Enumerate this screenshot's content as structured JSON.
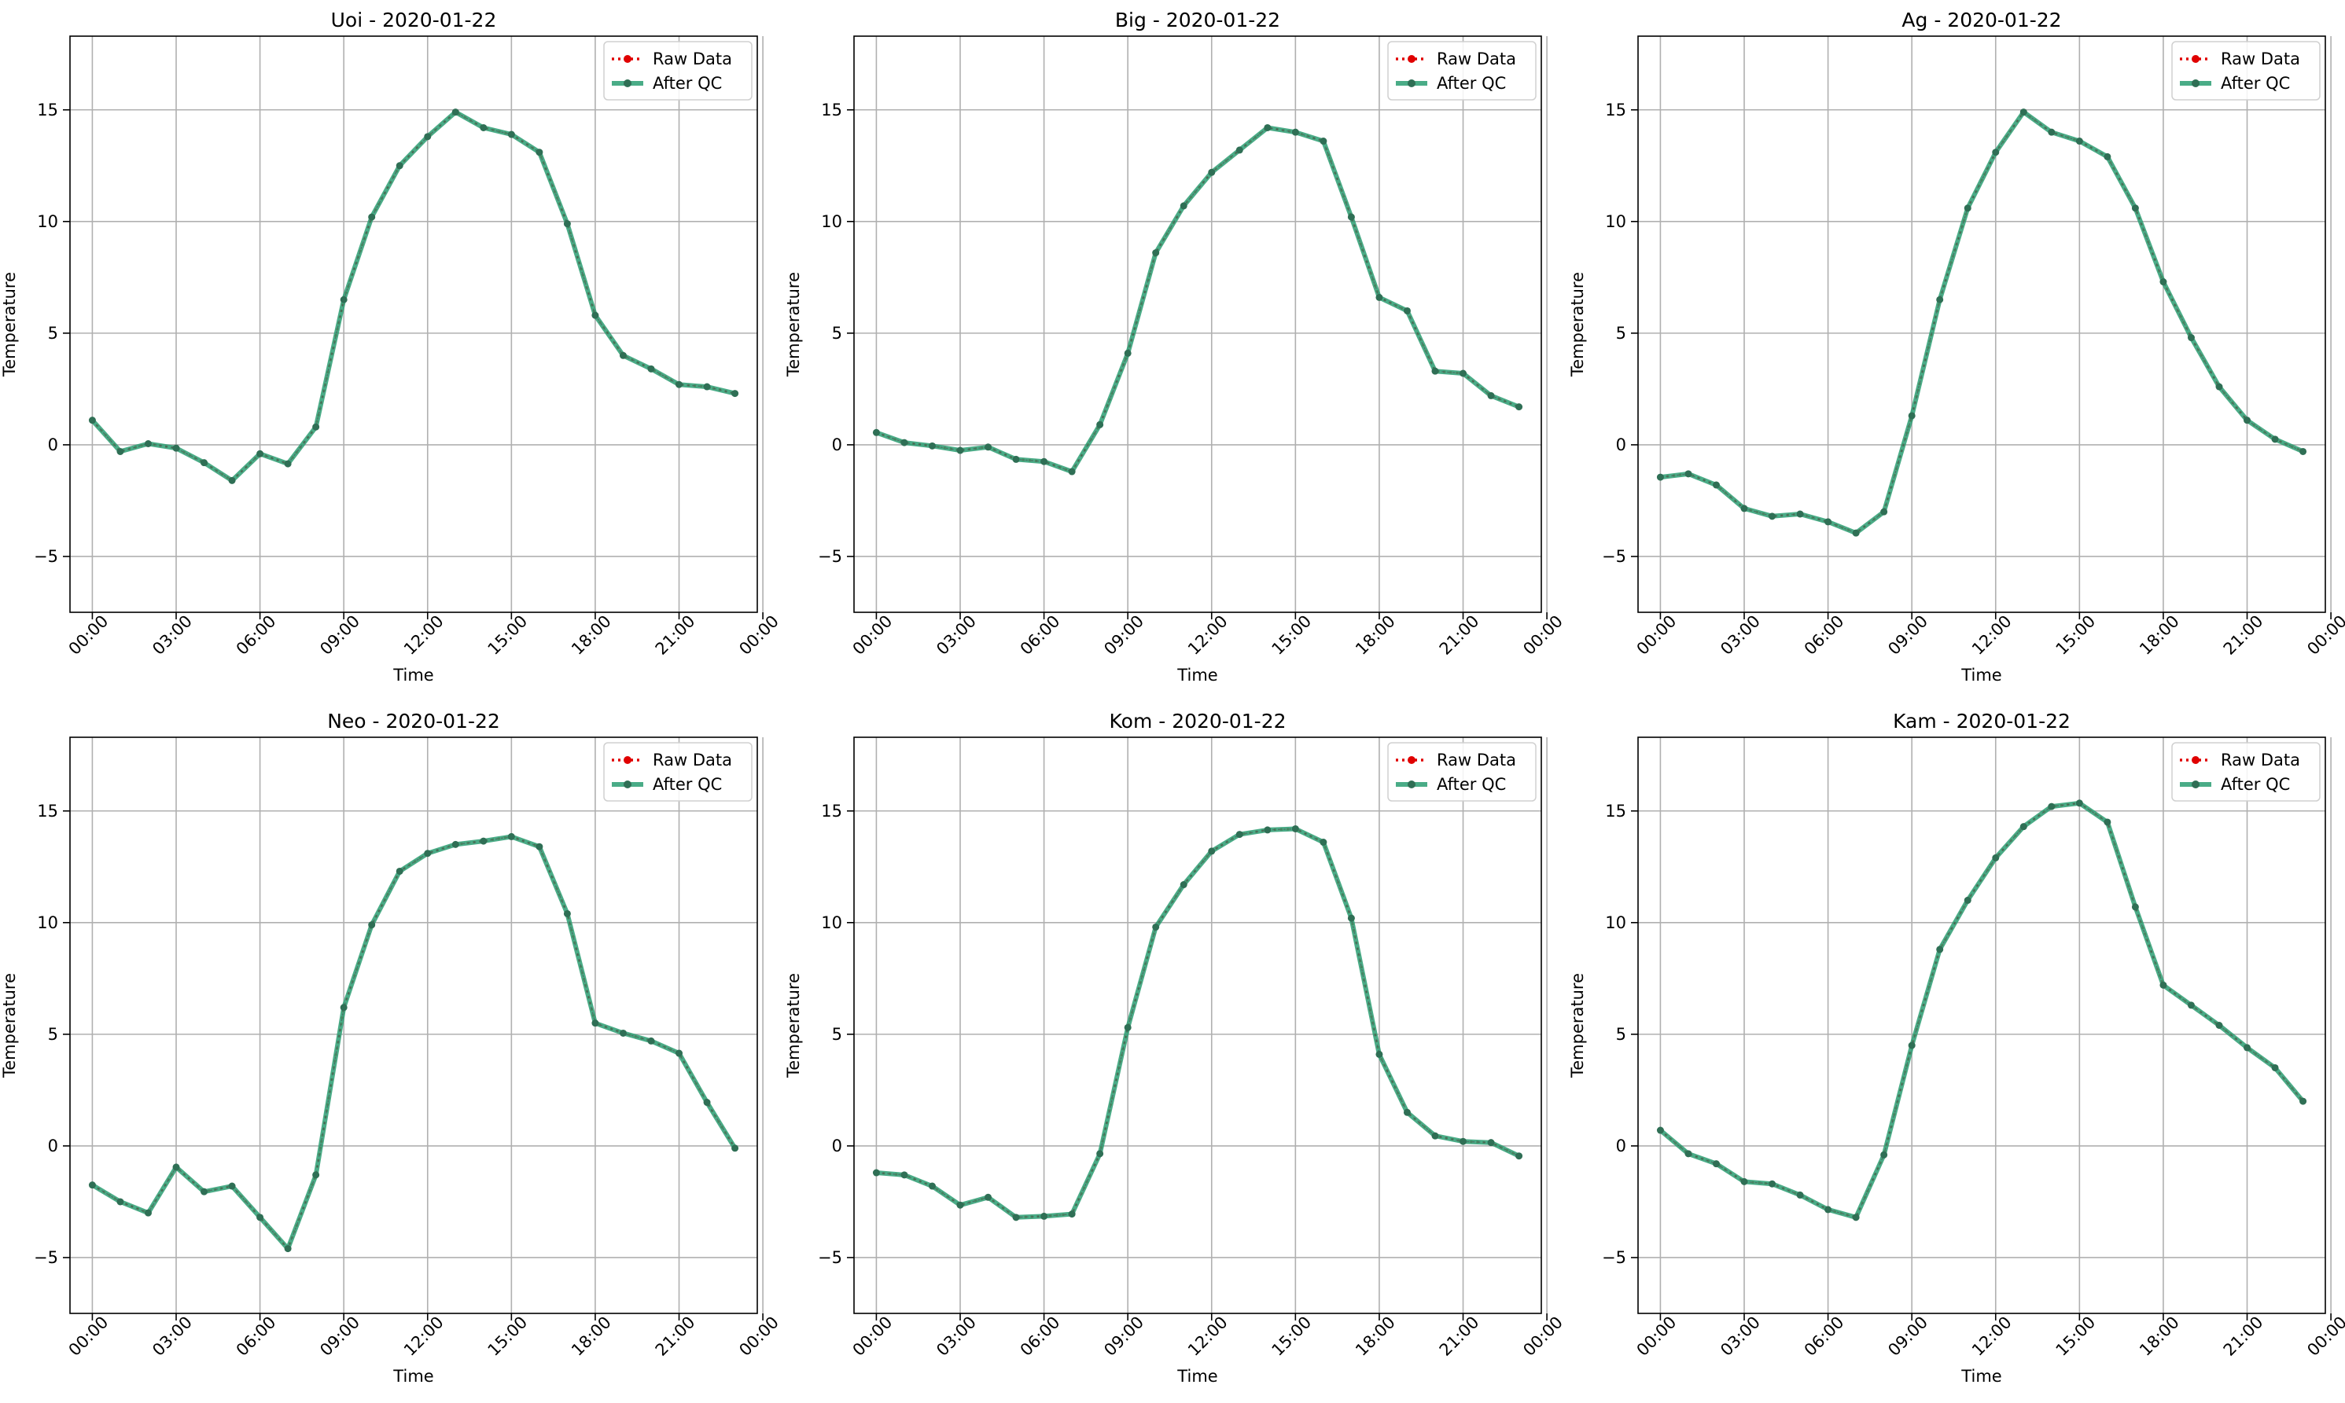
{
  "legend": {
    "raw_label": "Raw Data",
    "qc_label": "After QC"
  },
  "colors": {
    "raw": "#e00000",
    "qc": "#2a9d72",
    "marker": "#2f6f55",
    "grid": "#b0b0b0"
  },
  "chart_data": [
    {
      "type": "line",
      "title": "Uoi - 2020-01-22",
      "xlabel": "Time",
      "ylabel": "Temperature",
      "xlim": [
        -0.8,
        23.8
      ],
      "ylim": [
        -7.5,
        18.3
      ],
      "xticks": [
        0,
        3,
        6,
        9,
        12,
        15,
        18,
        21,
        24
      ],
      "xticklabels": [
        "00:00",
        "03:00",
        "06:00",
        "09:00",
        "12:00",
        "15:00",
        "18:00",
        "21:00",
        "00:00"
      ],
      "yticks": [
        -5,
        0,
        5,
        10,
        15
      ],
      "yticklabels": [
        "−5",
        "0",
        "5",
        "10",
        "15"
      ],
      "grid": true,
      "legend_position": "top-right",
      "x": [
        0,
        1,
        2,
        3,
        4,
        5,
        6,
        7,
        8,
        9,
        10,
        11,
        12,
        13,
        14,
        15,
        16,
        17,
        18,
        19,
        20,
        21,
        22,
        23
      ],
      "series": [
        {
          "name": "Raw Data",
          "values": [
            1.1,
            -0.3,
            0.05,
            -0.15,
            -0.8,
            -1.6,
            -0.4,
            -0.85,
            0.8,
            6.5,
            10.2,
            12.5,
            13.8,
            14.9,
            14.2,
            13.9,
            13.1,
            9.9,
            5.8,
            4.0,
            3.4,
            2.7,
            2.6,
            2.3
          ]
        },
        {
          "name": "After QC",
          "values": [
            1.1,
            -0.3,
            0.05,
            -0.15,
            -0.8,
            -1.6,
            -0.4,
            -0.85,
            0.8,
            6.5,
            10.2,
            12.5,
            13.8,
            14.9,
            14.2,
            13.9,
            13.1,
            9.9,
            5.8,
            4.0,
            3.4,
            2.7,
            2.6,
            2.3
          ]
        }
      ]
    },
    {
      "type": "line",
      "title": "Big - 2020-01-22",
      "xlabel": "Time",
      "ylabel": "Temperature",
      "xlim": [
        -0.8,
        23.8
      ],
      "ylim": [
        -7.5,
        18.3
      ],
      "xticks": [
        0,
        3,
        6,
        9,
        12,
        15,
        18,
        21,
        24
      ],
      "xticklabels": [
        "00:00",
        "03:00",
        "06:00",
        "09:00",
        "12:00",
        "15:00",
        "18:00",
        "21:00",
        "00:00"
      ],
      "yticks": [
        -5,
        0,
        5,
        10,
        15
      ],
      "yticklabels": [
        "−5",
        "0",
        "5",
        "10",
        "15"
      ],
      "grid": true,
      "legend_position": "top-right",
      "x": [
        0,
        1,
        2,
        3,
        4,
        5,
        6,
        7,
        8,
        9,
        10,
        11,
        12,
        13,
        14,
        15,
        16,
        17,
        18,
        19,
        20,
        21,
        22,
        23
      ],
      "series": [
        {
          "name": "Raw Data",
          "values": [
            0.55,
            0.1,
            -0.05,
            -0.25,
            -0.1,
            -0.65,
            -0.75,
            -1.2,
            0.9,
            4.1,
            8.6,
            10.7,
            12.2,
            13.2,
            14.2,
            14.0,
            13.6,
            10.2,
            6.6,
            6.0,
            3.3,
            3.2,
            2.2,
            1.7
          ]
        },
        {
          "name": "After QC",
          "values": [
            0.55,
            0.1,
            -0.05,
            -0.25,
            -0.1,
            -0.65,
            -0.75,
            -1.2,
            0.9,
            4.1,
            8.6,
            10.7,
            12.2,
            13.2,
            14.2,
            14.0,
            13.6,
            10.2,
            6.6,
            6.0,
            3.3,
            3.2,
            2.2,
            1.7
          ]
        }
      ]
    },
    {
      "type": "line",
      "title": "Ag - 2020-01-22",
      "xlabel": "Time",
      "ylabel": "Temperature",
      "xlim": [
        -0.8,
        23.8
      ],
      "ylim": [
        -7.5,
        18.3
      ],
      "xticks": [
        0,
        3,
        6,
        9,
        12,
        15,
        18,
        21,
        24
      ],
      "xticklabels": [
        "00:00",
        "03:00",
        "06:00",
        "09:00",
        "12:00",
        "15:00",
        "18:00",
        "21:00",
        "00:00"
      ],
      "yticks": [
        -5,
        0,
        5,
        10,
        15
      ],
      "yticklabels": [
        "−5",
        "0",
        "5",
        "10",
        "15"
      ],
      "grid": true,
      "legend_position": "top-right",
      "x": [
        0,
        1,
        2,
        3,
        4,
        5,
        6,
        7,
        8,
        9,
        10,
        11,
        12,
        13,
        14,
        15,
        16,
        17,
        18,
        19,
        20,
        21,
        22,
        23
      ],
      "series": [
        {
          "name": "Raw Data",
          "values": [
            -1.45,
            -1.3,
            -1.8,
            -2.85,
            -3.2,
            -3.1,
            -3.45,
            -3.95,
            -3.0,
            1.3,
            6.5,
            10.6,
            13.1,
            14.9,
            14.0,
            13.6,
            12.9,
            10.6,
            7.3,
            4.8,
            2.6,
            1.1,
            0.25,
            -0.3
          ]
        },
        {
          "name": "After QC",
          "values": [
            -1.45,
            -1.3,
            -1.8,
            -2.85,
            -3.2,
            -3.1,
            -3.45,
            -3.95,
            -3.0,
            1.3,
            6.5,
            10.6,
            13.1,
            14.9,
            14.0,
            13.6,
            12.9,
            10.6,
            7.3,
            4.8,
            2.6,
            1.1,
            0.25,
            -0.3
          ]
        }
      ]
    },
    {
      "type": "line",
      "title": "Neo - 2020-01-22",
      "xlabel": "Time",
      "ylabel": "Temperature",
      "xlim": [
        -0.8,
        23.8
      ],
      "ylim": [
        -7.5,
        18.3
      ],
      "xticks": [
        0,
        3,
        6,
        9,
        12,
        15,
        18,
        21,
        24
      ],
      "xticklabels": [
        "00:00",
        "03:00",
        "06:00",
        "09:00",
        "12:00",
        "15:00",
        "18:00",
        "21:00",
        "00:00"
      ],
      "yticks": [
        -5,
        0,
        5,
        10,
        15
      ],
      "yticklabels": [
        "−5",
        "0",
        "5",
        "10",
        "15"
      ],
      "grid": true,
      "legend_position": "top-right",
      "x": [
        0,
        1,
        2,
        3,
        4,
        5,
        6,
        7,
        8,
        9,
        10,
        11,
        12,
        13,
        14,
        15,
        16,
        17,
        18,
        19,
        20,
        21,
        22,
        23
      ],
      "series": [
        {
          "name": "Raw Data",
          "values": [
            -1.75,
            -2.5,
            -3.0,
            -0.95,
            -2.05,
            -1.8,
            -3.2,
            -4.6,
            -1.3,
            6.2,
            9.9,
            12.3,
            13.1,
            13.5,
            13.65,
            13.85,
            13.4,
            10.4,
            5.5,
            5.05,
            4.7,
            4.15,
            1.95,
            -0.1
          ]
        },
        {
          "name": "After QC",
          "values": [
            -1.75,
            -2.5,
            -3.0,
            -0.95,
            -2.05,
            -1.8,
            -3.2,
            -4.6,
            -1.3,
            6.2,
            9.9,
            12.3,
            13.1,
            13.5,
            13.65,
            13.85,
            13.4,
            10.4,
            5.5,
            5.05,
            4.7,
            4.15,
            1.95,
            -0.1
          ]
        }
      ]
    },
    {
      "type": "line",
      "title": "Kom - 2020-01-22",
      "xlabel": "Time",
      "ylabel": "Temperature",
      "xlim": [
        -0.8,
        23.8
      ],
      "ylim": [
        -7.5,
        18.3
      ],
      "xticks": [
        0,
        3,
        6,
        9,
        12,
        15,
        18,
        21,
        24
      ],
      "xticklabels": [
        "00:00",
        "03:00",
        "06:00",
        "09:00",
        "12:00",
        "15:00",
        "18:00",
        "21:00",
        "00:00"
      ],
      "yticks": [
        -5,
        0,
        5,
        10,
        15
      ],
      "yticklabels": [
        "−5",
        "0",
        "5",
        "10",
        "15"
      ],
      "grid": true,
      "legend_position": "top-right",
      "x": [
        0,
        1,
        2,
        3,
        4,
        5,
        6,
        7,
        8,
        9,
        10,
        11,
        12,
        13,
        14,
        15,
        16,
        17,
        18,
        19,
        20,
        21,
        22,
        23
      ],
      "series": [
        {
          "name": "Raw Data",
          "values": [
            -1.2,
            -1.3,
            -1.8,
            -2.65,
            -2.3,
            -3.2,
            -3.15,
            -3.05,
            -0.35,
            5.3,
            9.8,
            11.7,
            13.2,
            13.95,
            14.15,
            14.2,
            13.6,
            10.2,
            4.1,
            1.5,
            0.45,
            0.2,
            0.15,
            -0.45
          ]
        },
        {
          "name": "After QC",
          "values": [
            -1.2,
            -1.3,
            -1.8,
            -2.65,
            -2.3,
            -3.2,
            -3.15,
            -3.05,
            -0.35,
            5.3,
            9.8,
            11.7,
            13.2,
            13.95,
            14.15,
            14.2,
            13.6,
            10.2,
            4.1,
            1.5,
            0.45,
            0.2,
            0.15,
            -0.45
          ]
        }
      ]
    },
    {
      "type": "line",
      "title": "Kam - 2020-01-22",
      "xlabel": "Time",
      "ylabel": "Temperature",
      "xlim": [
        -0.8,
        23.8
      ],
      "ylim": [
        -7.5,
        18.3
      ],
      "xticks": [
        0,
        3,
        6,
        9,
        12,
        15,
        18,
        21,
        24
      ],
      "xticklabels": [
        "00:00",
        "03:00",
        "06:00",
        "09:00",
        "12:00",
        "15:00",
        "18:00",
        "21:00",
        "00:00"
      ],
      "yticks": [
        -5,
        0,
        5,
        10,
        15
      ],
      "yticklabels": [
        "−5",
        "0",
        "5",
        "10",
        "15"
      ],
      "grid": true,
      "legend_position": "top-right",
      "x": [
        0,
        1,
        2,
        3,
        4,
        5,
        6,
        7,
        8,
        9,
        10,
        11,
        12,
        13,
        14,
        15,
        16,
        17,
        18,
        19,
        20,
        21,
        22,
        23
      ],
      "series": [
        {
          "name": "Raw Data",
          "values": [
            0.7,
            -0.35,
            -0.8,
            -1.6,
            -1.7,
            -2.2,
            -2.85,
            -3.2,
            -0.4,
            4.5,
            8.8,
            11.0,
            12.9,
            14.3,
            15.2,
            15.35,
            14.5,
            10.7,
            7.2,
            6.3,
            5.4,
            4.4,
            3.5,
            2.0
          ]
        },
        {
          "name": "After QC",
          "values": [
            0.7,
            -0.35,
            -0.8,
            -1.6,
            -1.7,
            -2.2,
            -2.85,
            -3.2,
            -0.4,
            4.5,
            8.8,
            11.0,
            12.9,
            14.3,
            15.2,
            15.35,
            14.5,
            10.7,
            7.2,
            6.3,
            5.4,
            4.4,
            3.5,
            2.0
          ]
        }
      ]
    }
  ]
}
